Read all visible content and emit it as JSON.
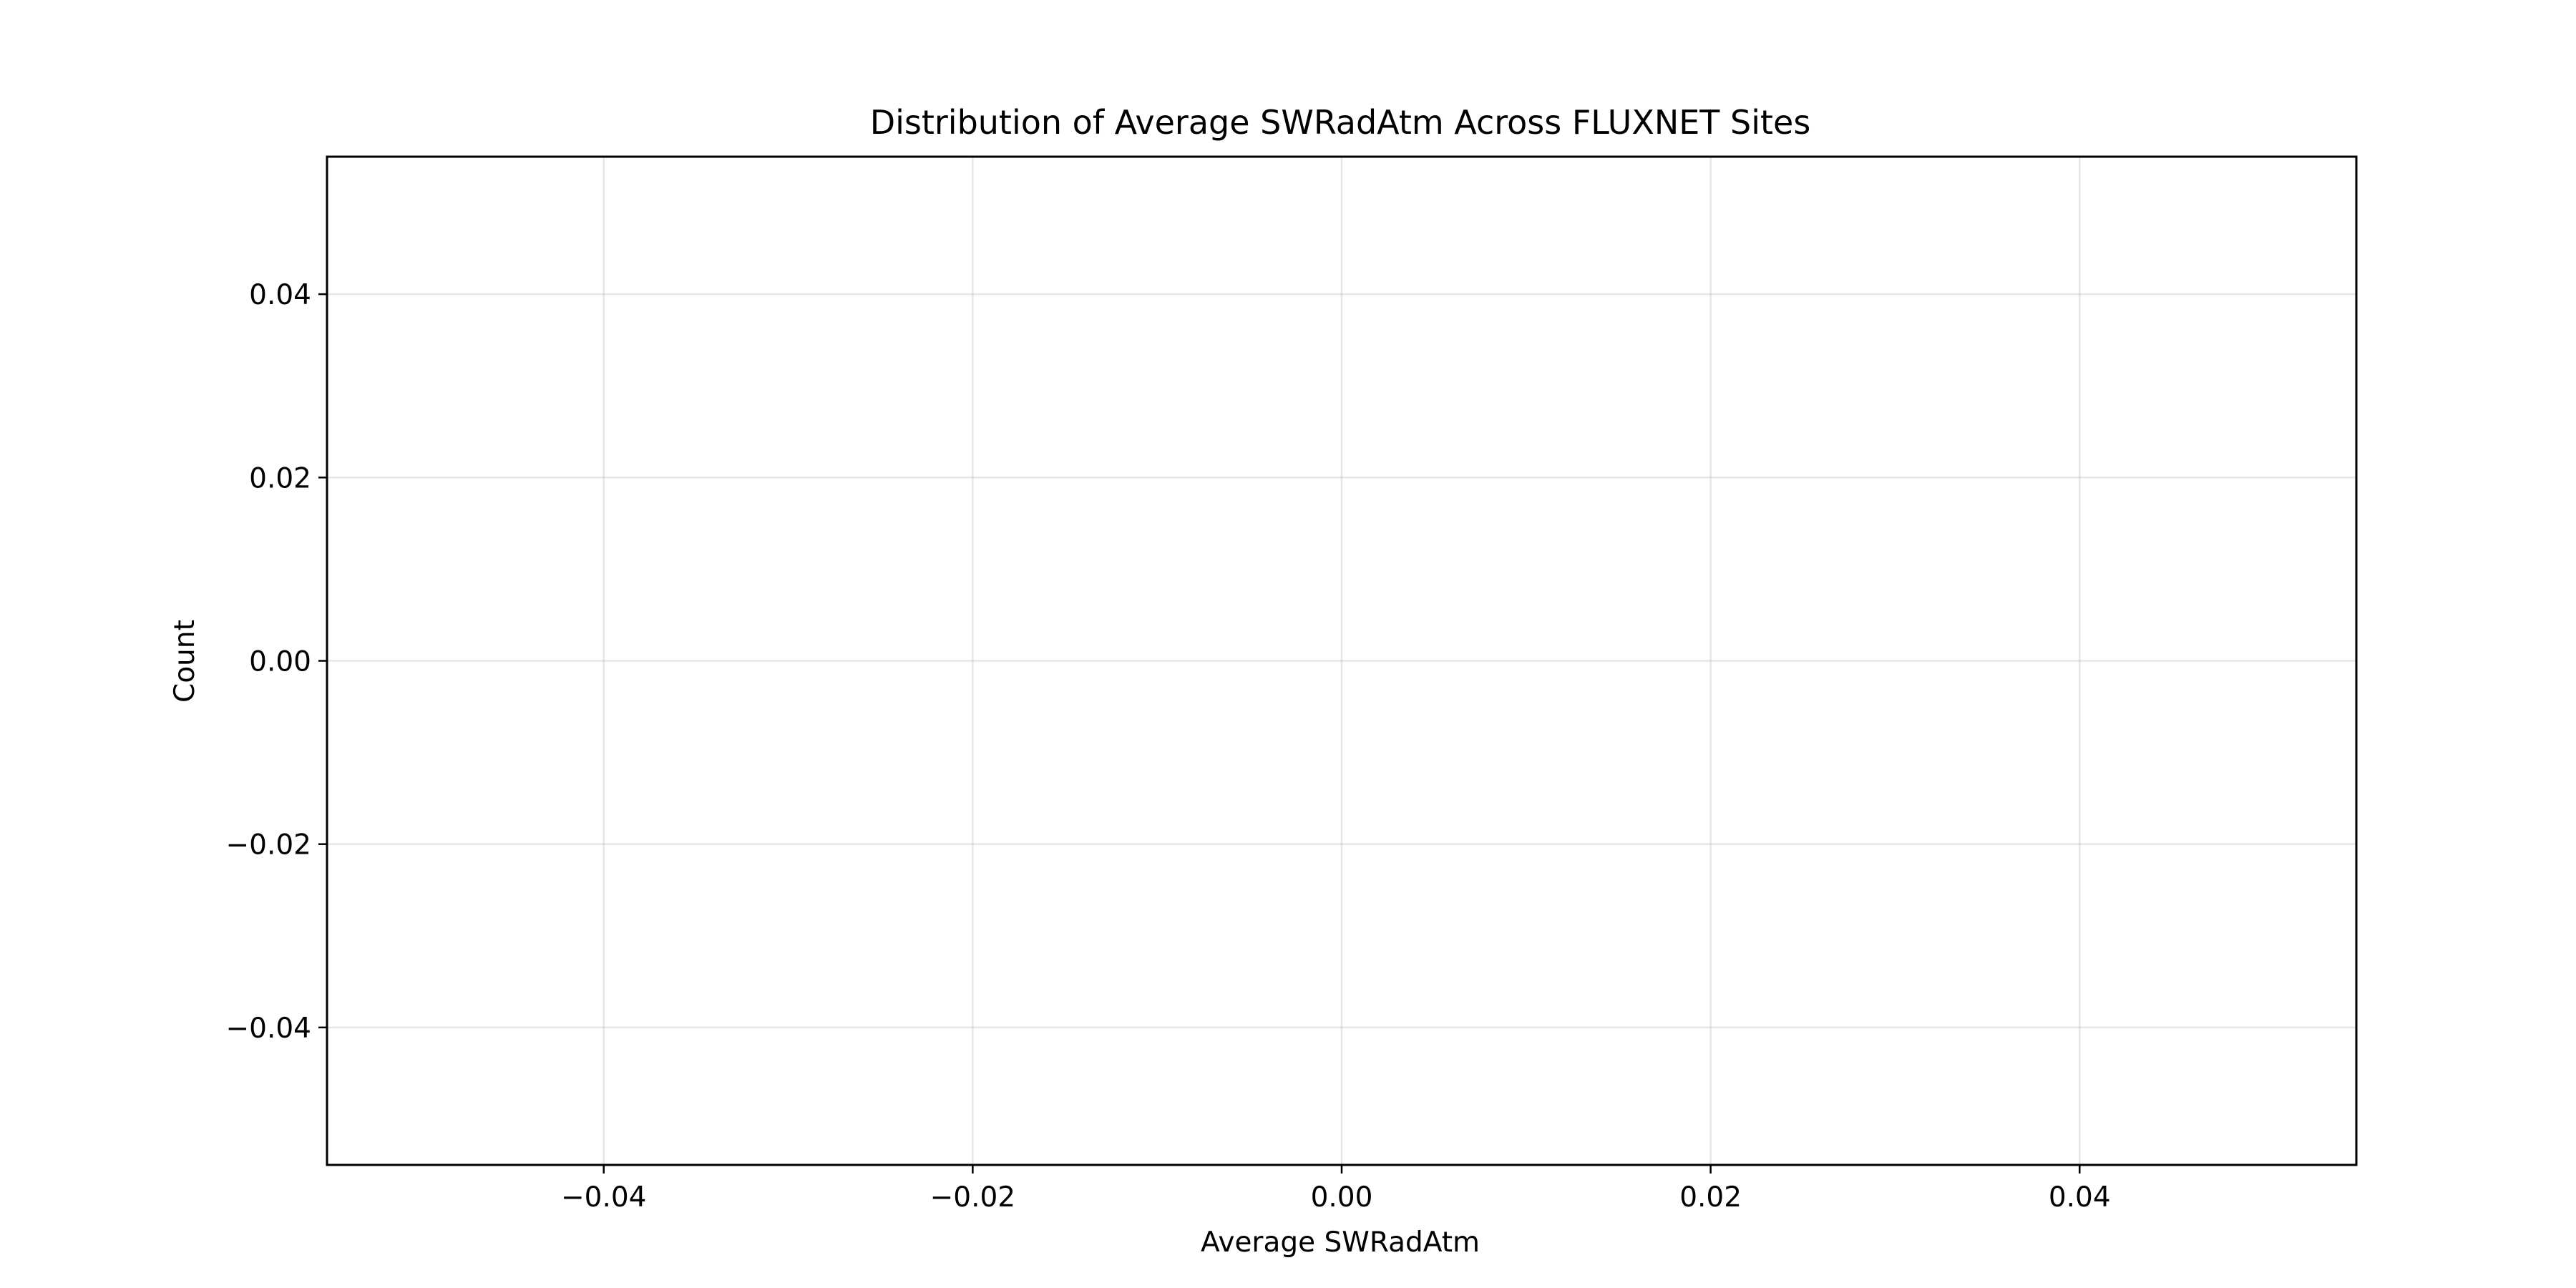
{
  "chart_data": {
    "type": "bar",
    "title": "Distribution of Average SWRadAtm Across FLUXNET Sites",
    "xlabel": "Average SWRadAtm",
    "ylabel": "Count",
    "xlim": [
      -0.055,
      0.055
    ],
    "ylim": [
      -0.055,
      0.055
    ],
    "xticks": [
      -0.04,
      -0.02,
      0.0,
      0.02,
      0.04
    ],
    "xtick_labels": [
      "−0.04",
      "−0.02",
      "0.00",
      "0.02",
      "0.04"
    ],
    "yticks": [
      -0.04,
      -0.02,
      0.0,
      0.02,
      0.04
    ],
    "ytick_labels": [
      "−0.04",
      "−0.02",
      "0.00",
      "0.02",
      "0.04"
    ],
    "grid": true,
    "series": [],
    "values": []
  }
}
